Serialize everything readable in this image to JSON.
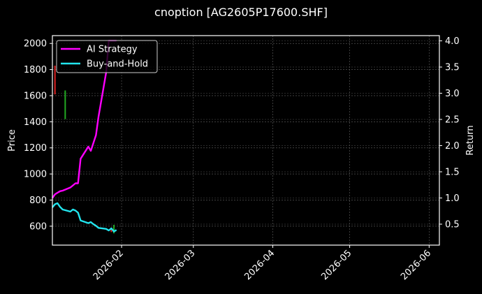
{
  "title": "cnoption [AG2605P17600.SHF]",
  "colors": {
    "background": "#000000",
    "ai_strategy": "#ff00ff",
    "buy_and_hold": "#22e5ee",
    "candle_up": "#22aa22",
    "candle_down": "#dd2222",
    "grid": "#555555",
    "axes": "#ffffff"
  },
  "axes": {
    "left_label": "Price",
    "right_label": "Return",
    "left_ticks": [
      "600",
      "800",
      "1000",
      "1200",
      "1400",
      "1600",
      "1800",
      "2000"
    ],
    "right_ticks": [
      "0.5",
      "1.0",
      "1.5",
      "2.0",
      "2.5",
      "3.0",
      "3.5",
      "4.0"
    ],
    "x_ticks": [
      "2026-02",
      "2026-03",
      "2026-04",
      "2026-05",
      "2026-06"
    ]
  },
  "legend": {
    "items": [
      {
        "label": "AI Strategy",
        "color": "#ff00ff"
      },
      {
        "label": "Buy-and-Hold",
        "color": "#22e5ee"
      }
    ]
  },
  "chart_data": {
    "type": "line",
    "title": "cnoption [AG2605P17600.SHF]",
    "xlabel": "",
    "ylabel": "Price",
    "ylabel_right": "Return",
    "ylim": [
      455,
      2060
    ],
    "ylim_right": [
      0.1,
      4.1
    ],
    "xlim": [
      "2026-01-05",
      "2026-06-05"
    ],
    "x_ticks": [
      "2026-02",
      "2026-03",
      "2026-04",
      "2026-05",
      "2026-06"
    ],
    "grid": true,
    "legend_position": "upper left",
    "x": [
      "2026-01-05",
      "2026-01-06",
      "2026-01-07",
      "2026-01-08",
      "2026-01-09",
      "2026-01-12",
      "2026-01-13",
      "2026-01-14",
      "2026-01-15",
      "2026-01-16",
      "2026-01-19",
      "2026-01-20",
      "2026-01-21",
      "2026-01-22",
      "2026-01-23",
      "2026-01-26",
      "2026-01-27",
      "2026-01-28",
      "2026-01-29",
      "2026-01-30"
    ],
    "series": [
      {
        "name": "AI Strategy",
        "axis": "right",
        "values": [
          1.0,
          1.07,
          1.1,
          1.13,
          1.14,
          1.2,
          1.24,
          1.28,
          1.28,
          1.75,
          1.98,
          1.9,
          2.05,
          2.2,
          2.55,
          3.4,
          4.0,
          4.0,
          4.0,
          4.0
        ]
      },
      {
        "name": "Buy-and-Hold",
        "axis": "right",
        "values": [
          0.82,
          0.88,
          0.9,
          0.83,
          0.78,
          0.74,
          0.78,
          0.76,
          0.72,
          0.57,
          0.52,
          0.54,
          0.5,
          0.47,
          0.43,
          0.41,
          0.38,
          0.42,
          0.36,
          0.39
        ]
      }
    ],
    "candles_visible": [
      {
        "x": "2026-01-06",
        "low": 1610,
        "high": 1830,
        "direction": "down"
      },
      {
        "x": "2026-01-10",
        "low": 1420,
        "high": 1640,
        "direction": "up"
      },
      {
        "x": "2026-01-28",
        "low": 555,
        "high": 590,
        "direction": "down"
      },
      {
        "x": "2026-01-29",
        "low": 545,
        "high": 610,
        "direction": "up"
      }
    ]
  }
}
